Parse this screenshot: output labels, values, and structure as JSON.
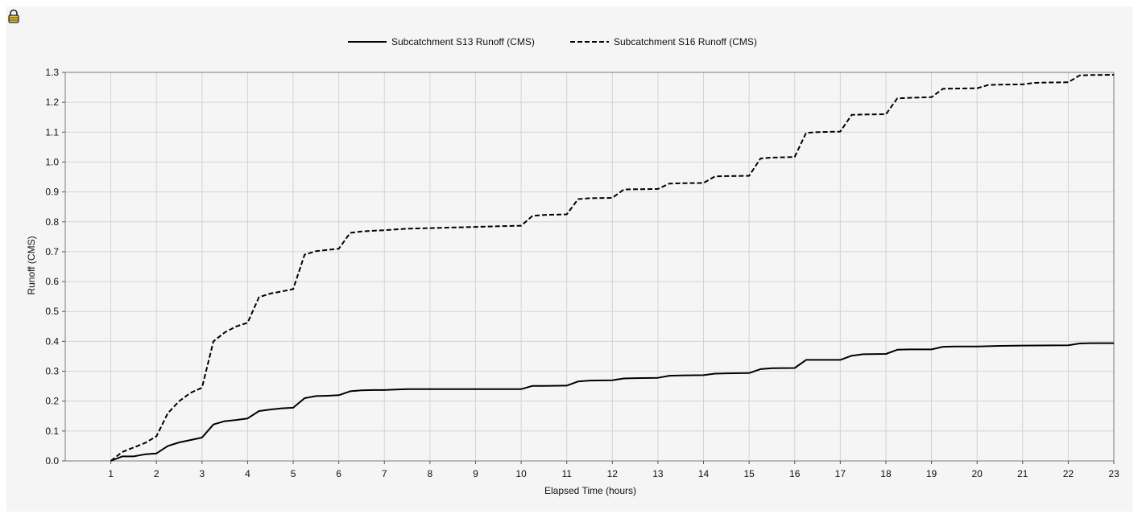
{
  "window": {
    "lock_icon": "padlock-icon"
  },
  "colors": {
    "background": "#f5f5f5",
    "grid": "#d4d4d4",
    "series": "#000000",
    "lock_fill": "#e8c33a"
  },
  "chart_data": {
    "type": "line",
    "title": "",
    "xlabel": "Elapsed Time (hours)",
    "ylabel": "Runoff (CMS)",
    "xlim": [
      0,
      23
    ],
    "ylim": [
      0,
      1.3
    ],
    "xticks": [
      1,
      2,
      3,
      4,
      5,
      6,
      7,
      8,
      9,
      10,
      11,
      12,
      13,
      14,
      15,
      16,
      17,
      18,
      19,
      20,
      21,
      22,
      23
    ],
    "yticks": [
      0.0,
      0.1,
      0.2,
      0.3,
      0.4,
      0.5,
      0.6,
      0.7,
      0.8,
      0.9,
      1.0,
      1.1,
      1.2,
      1.3
    ],
    "ytick_labels": [
      "0.0",
      "0.1",
      "0.2",
      "0.3",
      "0.4",
      "0.5",
      "0.6",
      "0.7",
      "0.8",
      "0.9",
      "1.0",
      "1.1",
      "1.2",
      "1.3"
    ],
    "grid": true,
    "legend_position": "top-center",
    "series": [
      {
        "name": "Subcatchment S13 Runoff (CMS)",
        "style": "solid",
        "x": [
          1.0,
          1.25,
          1.5,
          1.75,
          2.0,
          2.25,
          2.5,
          2.75,
          3.0,
          3.25,
          3.5,
          3.75,
          4.0,
          4.25,
          4.5,
          4.75,
          5.0,
          5.25,
          5.5,
          5.75,
          6.0,
          6.25,
          6.5,
          6.75,
          7.0,
          7.25,
          7.5,
          8.0,
          9.0,
          10.0,
          10.25,
          10.5,
          11.0,
          11.25,
          11.5,
          12.0,
          12.25,
          12.5,
          13.0,
          13.25,
          13.5,
          14.0,
          14.25,
          14.5,
          15.0,
          15.25,
          15.5,
          16.0,
          16.25,
          16.5,
          17.0,
          17.25,
          17.5,
          18.0,
          18.25,
          18.5,
          19.0,
          19.25,
          19.5,
          20.0,
          20.5,
          21.0,
          22.0,
          22.25,
          22.5,
          23.0
        ],
        "y": [
          0.0,
          0.015,
          0.015,
          0.022,
          0.025,
          0.05,
          0.062,
          0.07,
          0.078,
          0.122,
          0.133,
          0.137,
          0.142,
          0.167,
          0.172,
          0.176,
          0.178,
          0.21,
          0.217,
          0.218,
          0.22,
          0.233,
          0.236,
          0.237,
          0.237,
          0.239,
          0.24,
          0.24,
          0.24,
          0.24,
          0.251,
          0.251,
          0.252,
          0.266,
          0.269,
          0.27,
          0.276,
          0.277,
          0.278,
          0.285,
          0.286,
          0.287,
          0.292,
          0.293,
          0.294,
          0.307,
          0.31,
          0.311,
          0.338,
          0.338,
          0.338,
          0.352,
          0.357,
          0.358,
          0.372,
          0.373,
          0.373,
          0.382,
          0.383,
          0.383,
          0.385,
          0.386,
          0.387,
          0.393,
          0.394,
          0.394
        ]
      },
      {
        "name": "Subcatchment S16 Runoff (CMS)",
        "style": "dashed",
        "x": [
          1.0,
          1.25,
          1.5,
          1.75,
          2.0,
          2.25,
          2.5,
          2.75,
          3.0,
          3.25,
          3.5,
          3.75,
          4.0,
          4.25,
          4.5,
          4.75,
          5.0,
          5.25,
          5.5,
          5.75,
          6.0,
          6.25,
          6.5,
          6.75,
          7.0,
          7.5,
          8.0,
          8.5,
          9.0,
          9.5,
          10.0,
          10.25,
          10.5,
          11.0,
          11.25,
          11.5,
          12.0,
          12.25,
          12.5,
          13.0,
          13.25,
          13.5,
          14.0,
          14.25,
          14.5,
          15.0,
          15.25,
          15.5,
          16.0,
          16.25,
          16.5,
          17.0,
          17.25,
          17.5,
          18.0,
          18.25,
          18.5,
          19.0,
          19.25,
          19.5,
          20.0,
          20.25,
          20.5,
          21.0,
          21.25,
          21.5,
          22.0,
          22.25,
          22.5,
          23.0
        ],
        "y": [
          0.0,
          0.03,
          0.045,
          0.06,
          0.082,
          0.16,
          0.2,
          0.228,
          0.245,
          0.4,
          0.43,
          0.45,
          0.462,
          0.548,
          0.56,
          0.567,
          0.575,
          0.69,
          0.702,
          0.706,
          0.71,
          0.763,
          0.768,
          0.77,
          0.772,
          0.777,
          0.779,
          0.781,
          0.783,
          0.785,
          0.787,
          0.82,
          0.823,
          0.825,
          0.876,
          0.879,
          0.88,
          0.908,
          0.909,
          0.91,
          0.928,
          0.929,
          0.93,
          0.952,
          0.953,
          0.954,
          1.012,
          1.015,
          1.017,
          1.098,
          1.1,
          1.102,
          1.158,
          1.159,
          1.16,
          1.213,
          1.215,
          1.217,
          1.245,
          1.246,
          1.247,
          1.258,
          1.259,
          1.26,
          1.265,
          1.266,
          1.267,
          1.29,
          1.291,
          1.292
        ]
      }
    ]
  }
}
